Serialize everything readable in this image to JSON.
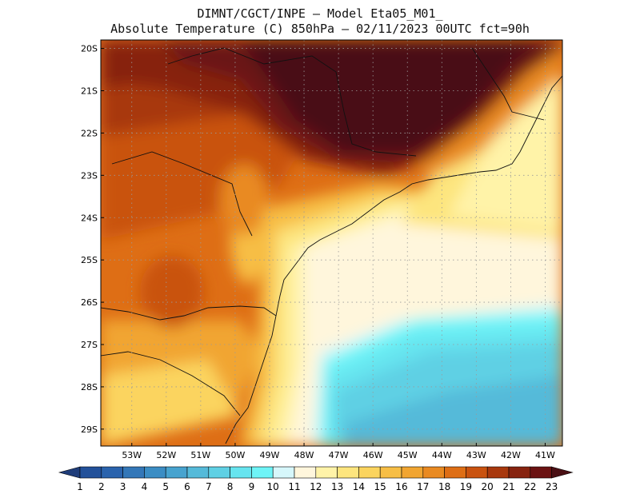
{
  "title": {
    "line1": "DIMNT/CGCT/INPE –  Model Eta05_M01_",
    "line2": "Absolute Temperature (C) 850hPa –  02/11/2023 00UTC fct=90h"
  },
  "map": {
    "lon_range": [
      -53.9,
      -40.5
    ],
    "lat_range": [
      -29.4,
      -19.8
    ],
    "lat_ticks": [
      "20S",
      "21S",
      "22S",
      "23S",
      "24S",
      "25S",
      "26S",
      "27S",
      "28S",
      "29S"
    ],
    "lon_ticks": [
      "53W",
      "52W",
      "51W",
      "50W",
      "49W",
      "48W",
      "47W",
      "46W",
      "45W",
      "44W",
      "43W",
      "42W",
      "41W"
    ]
  },
  "colorbar": {
    "labels": [
      "1",
      "2",
      "3",
      "4",
      "5",
      "6",
      "7",
      "8",
      "9",
      "10",
      "11",
      "12",
      "13",
      "14",
      "15",
      "16",
      "17",
      "18",
      "19",
      "20",
      "21",
      "22",
      "23"
    ],
    "colors": [
      "#1f3d7a",
      "#22519a",
      "#2a63ad",
      "#3377b8",
      "#3b8dc4",
      "#47a3cf",
      "#55bad9",
      "#5fd0e4",
      "#66e4ef",
      "#6ef4f7",
      "#d6f7fb",
      "#fff6dc",
      "#fff3a8",
      "#fde57e",
      "#fbd45e",
      "#f7be45",
      "#f1a531",
      "#e98a21",
      "#de6e15",
      "#c9520f",
      "#a8380d",
      "#87230f",
      "#6b1212",
      "#4a0f14"
    ]
  }
}
